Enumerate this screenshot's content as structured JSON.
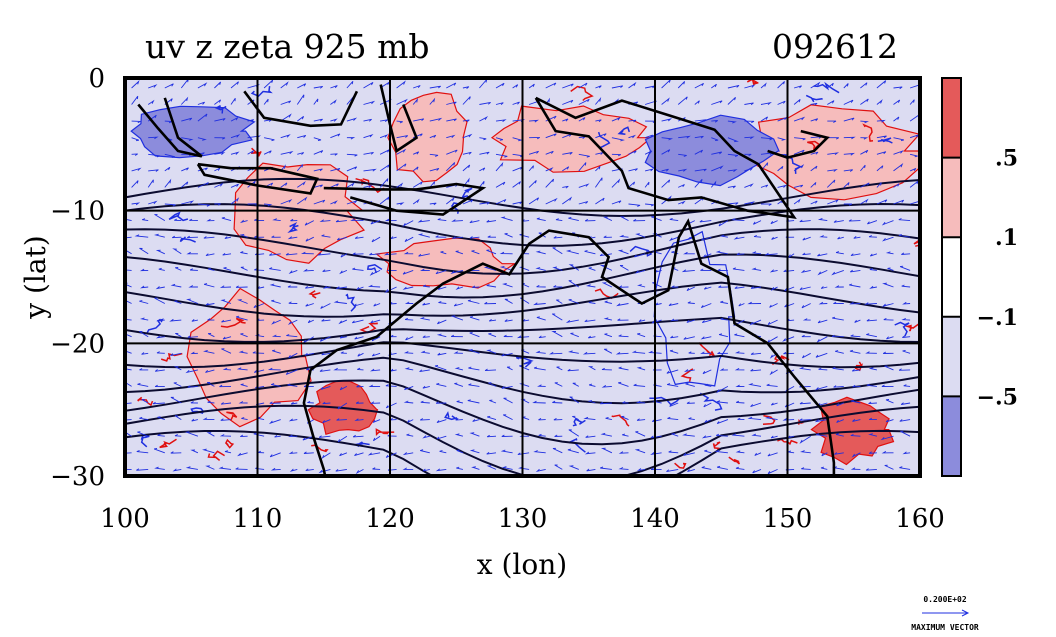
{
  "chart_data": {
    "type": "heatmap",
    "title": "uv z zeta 925 mb",
    "timestamp": "092612",
    "xlabel": "x (lon)",
    "ylabel": "y (lat)",
    "xlim": [
      100,
      160
    ],
    "ylim": [
      -30,
      0
    ],
    "x_ticks": [
      {
        "value": 100,
        "label": "100"
      },
      {
        "value": 110,
        "label": "110"
      },
      {
        "value": 120,
        "label": "120"
      },
      {
        "value": 130,
        "label": "130"
      },
      {
        "value": 140,
        "label": "140"
      },
      {
        "value": 150,
        "label": "150"
      },
      {
        "value": 160,
        "label": "160"
      }
    ],
    "y_ticks": [
      {
        "value": 0,
        "label": "0"
      },
      {
        "value": -10,
        "label": "−10"
      },
      {
        "value": -20,
        "label": "−20"
      },
      {
        "value": -30,
        "label": "−30"
      }
    ],
    "grid": true,
    "grid_lines_x": [
      110,
      120,
      130,
      140,
      150
    ],
    "grid_lines_y": [
      -10,
      -20
    ],
    "colorbar": {
      "levels": [
        {
          "label": ".5"
        },
        {
          "label": ".1"
        },
        {
          "label": "−.1"
        },
        {
          "label": "−.5"
        }
      ],
      "bands": [
        {
          "color": "#e45a5a"
        },
        {
          "color": "#f6bcbc"
        },
        {
          "color": "#ffffff"
        },
        {
          "color": "#dcdcf2"
        },
        {
          "color": "#8c8cdc"
        }
      ]
    },
    "coastline_color": "#000000",
    "contour_color": "#0b0b30",
    "vector_color": "#1f2fe0",
    "positive_contour_color": "#e01010",
    "negative_contour_color": "#1f2fe0",
    "regions": [
      {
        "kind": "neg",
        "lon": [
          100,
          160
        ],
        "lat": [
          -30,
          0
        ]
      },
      {
        "kind": "pos",
        "lon": [
          108,
          118
        ],
        "lat": [
          -14,
          -6
        ]
      },
      {
        "kind": "pos",
        "lon": [
          105,
          114
        ],
        "lat": [
          -26,
          -16
        ]
      },
      {
        "kind": "pos",
        "lon": [
          119,
          129
        ],
        "lat": [
          -16,
          -12
        ]
      },
      {
        "kind": "pos",
        "lon": [
          120,
          126
        ],
        "lat": [
          -8,
          -1
        ]
      },
      {
        "kind": "pos",
        "lon": [
          127,
          140
        ],
        "lat": [
          -7,
          -2
        ]
      },
      {
        "kind": "pos",
        "lon": [
          146,
          160
        ],
        "lat": [
          -9,
          -2
        ]
      },
      {
        "kind": "strongpos",
        "lon": [
          152,
          158
        ],
        "lat": [
          -29,
          -24
        ]
      },
      {
        "kind": "strongpos",
        "lon": [
          114,
          119
        ],
        "lat": [
          -27,
          -23
        ]
      },
      {
        "kind": "strongneg",
        "lon": [
          139,
          149
        ],
        "lat": [
          -8,
          -3
        ]
      },
      {
        "kind": "strongneg",
        "lon": [
          100,
          110
        ],
        "lat": [
          -6,
          -2
        ]
      },
      {
        "kind": "neg",
        "lon": [
          140,
          146
        ],
        "lat": [
          -24,
          -12
        ]
      }
    ]
  },
  "reference_vector": {
    "value_label": "0.200E+02",
    "caption": "MAXIMUM VECTOR"
  }
}
